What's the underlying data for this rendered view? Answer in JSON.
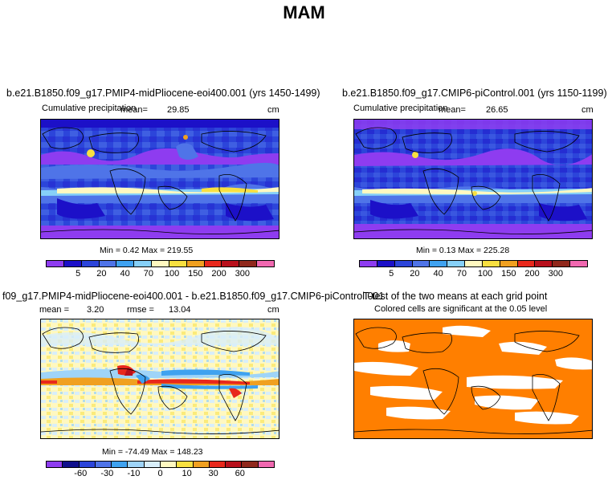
{
  "title": "MAM",
  "panels": {
    "top_left": {
      "title": "b.e21.B1850.f09_g17.PMIP4-midPliocene-eoi400.001 (yrs 1450-1499)",
      "variable": "Cumulative precipitation",
      "mean_label": "mean=",
      "mean_value": "29.85",
      "units": "cm",
      "minmax": "Min =    0.42  Max = 219.55"
    },
    "top_right": {
      "title": "b.e21.B1850.f09_g17.CMIP6-piControl.001 (yrs 1150-1199)",
      "variable": "Cumulative precipitation",
      "mean_label": "mean=",
      "mean_value": "26.65",
      "units": "cm",
      "minmax": "Min =    0.13  Max = 225.28"
    },
    "bottom_left": {
      "title": "f09_g17.PMIP4-midPliocene-eoi400.001 - b.e21.B1850.f09_g17.CMIP6-piControl.001",
      "mean_label": "mean =",
      "mean_value": "3.20",
      "rmse_label": "rmse =",
      "rmse_value": "13.04",
      "units": "cm",
      "minmax": "Min = -74.49  Max = 148.23"
    },
    "bottom_right": {
      "title": "T-test of the two means at each grid point",
      "subtitle": "Colored cells are significant at the 0.05 level"
    }
  },
  "colorbars": {
    "precip": {
      "colors": [
        "#8e3cf0",
        "#1c10c8",
        "#2c45da",
        "#4f74e8",
        "#3fa2f0",
        "#86d0f8",
        "#fff8c0",
        "#f8e040",
        "#f0a020",
        "#e8281c",
        "#b8101c",
        "#90281c",
        "#f068b0"
      ],
      "labels": [
        "5",
        "20",
        "40",
        "70",
        "100",
        "150",
        "200",
        "300"
      ]
    },
    "diff": {
      "colors": [
        "#8e3cf0",
        "#10108c",
        "#2c45da",
        "#4f74e8",
        "#3fa2f0",
        "#9fd4f8",
        "#d8eefa",
        "#fff8c0",
        "#f8e040",
        "#f0a020",
        "#e8281c",
        "#b8101c",
        "#90281c",
        "#f068b0"
      ],
      "labels": [
        "-60",
        "-30",
        "-10",
        "0",
        "10",
        "30",
        "60"
      ]
    }
  },
  "colors": {
    "ttest_fill": "#ff7f00"
  }
}
